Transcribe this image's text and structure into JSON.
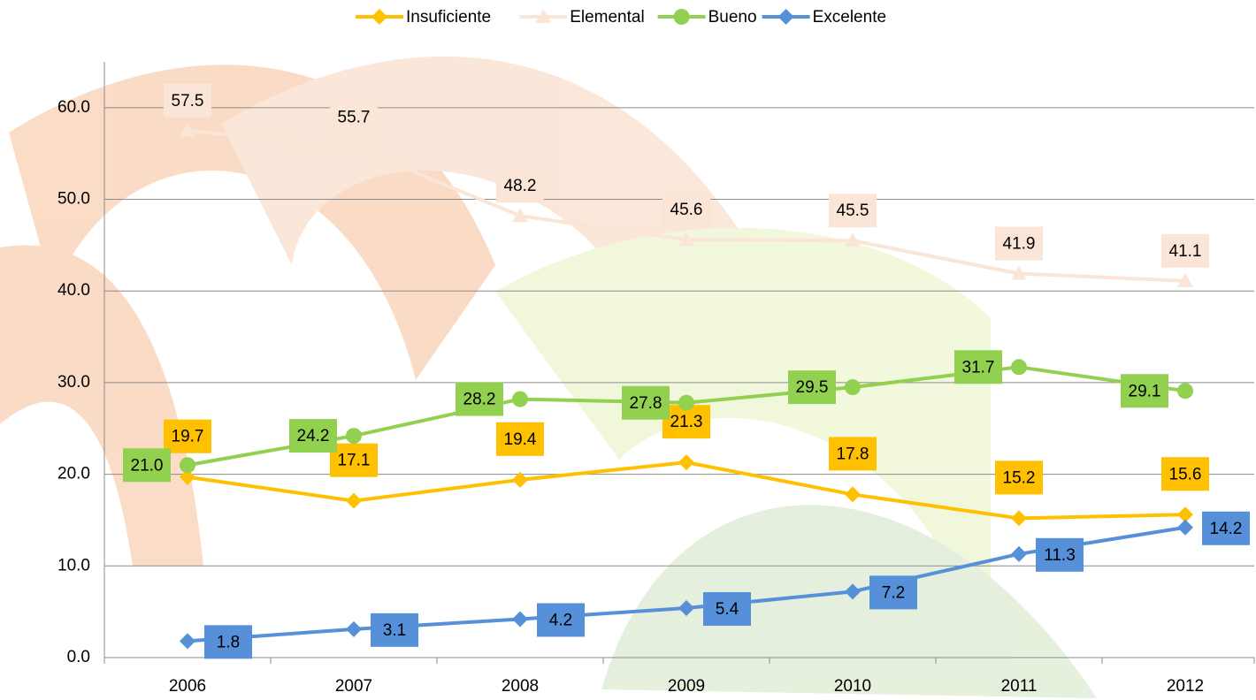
{
  "chart_data": {
    "type": "line",
    "categories": [
      "2006",
      "2007",
      "2008",
      "2009",
      "2010",
      "2011",
      "2012"
    ],
    "ylim": [
      0,
      65
    ],
    "yticks": [
      {
        "value": 0,
        "label": "0.0"
      },
      {
        "value": 10,
        "label": "10.0"
      },
      {
        "value": 20,
        "label": "20.0"
      },
      {
        "value": 30,
        "label": "30.0"
      },
      {
        "value": 40,
        "label": "40.0"
      },
      {
        "value": 50,
        "label": "50.0"
      },
      {
        "value": 60,
        "label": "60.0"
      }
    ],
    "grid": true,
    "legend": "top",
    "series": [
      {
        "name": "Insuficiente",
        "color": "#FFC000",
        "marker": "diamond",
        "values": [
          19.7,
          17.1,
          19.4,
          21.3,
          17.8,
          15.2,
          15.6
        ],
        "value_labels": [
          "19.7",
          "17.1",
          "19.4",
          "21.3",
          "17.8",
          "15.2",
          "15.6"
        ]
      },
      {
        "name": "Elemental",
        "color": "#FBE5D6",
        "marker": "triangle",
        "values": [
          57.5,
          55.7,
          48.2,
          45.6,
          45.5,
          41.9,
          41.1
        ],
        "value_labels": [
          "57.5",
          "55.7",
          "48.2",
          "45.6",
          "45.5",
          "41.9",
          "41.1"
        ]
      },
      {
        "name": "Bueno",
        "color": "#92D050",
        "marker": "circle",
        "values": [
          21.0,
          24.2,
          28.2,
          27.8,
          29.5,
          31.7,
          29.1
        ],
        "value_labels": [
          "21.0",
          "24.2",
          "28.2",
          "27.8",
          "29.5",
          "31.7",
          "29.1"
        ]
      },
      {
        "name": "Excelente",
        "color": "#5590D8",
        "marker": "diamond",
        "values": [
          1.8,
          3.1,
          4.2,
          5.4,
          7.2,
          11.3,
          14.2
        ],
        "value_labels": [
          "1.8",
          "3.1",
          "4.2",
          "5.4",
          "7.2",
          "11.3",
          "14.2"
        ]
      }
    ]
  }
}
